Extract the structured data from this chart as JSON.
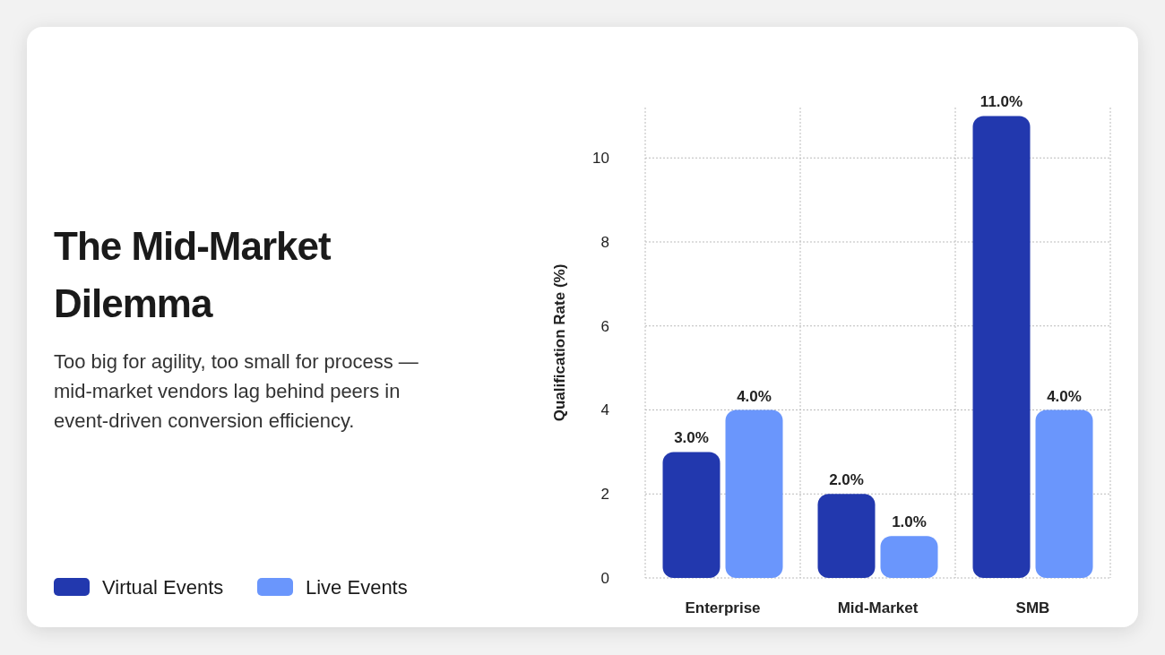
{
  "chart_data": {
    "type": "bar",
    "title": "The Mid-Market Dilemma",
    "subtitle": "Too big for agility, too small for process — mid-market vendors lag behind peers in event-driven conversion efficiency.",
    "ylabel": "Qualification Rate (%)",
    "categories": [
      "Enterprise",
      "Mid-Market",
      "SMB"
    ],
    "series": [
      {
        "name": "Virtual Events",
        "color": "#2238ae",
        "values": [
          3,
          2,
          11
        ],
        "value_labels": [
          "3.0%",
          "2.0%",
          "11.0%"
        ]
      },
      {
        "name": "Live Events",
        "color": "#6a96fc",
        "values": [
          4,
          1,
          4
        ],
        "value_labels": [
          "4.0%",
          "1.0%",
          "4.0%"
        ]
      }
    ],
    "ylim": [
      0,
      11.2
    ],
    "yticks": [
      0,
      2,
      4,
      6,
      8,
      10
    ],
    "grid": true,
    "legend": "bottom left"
  }
}
